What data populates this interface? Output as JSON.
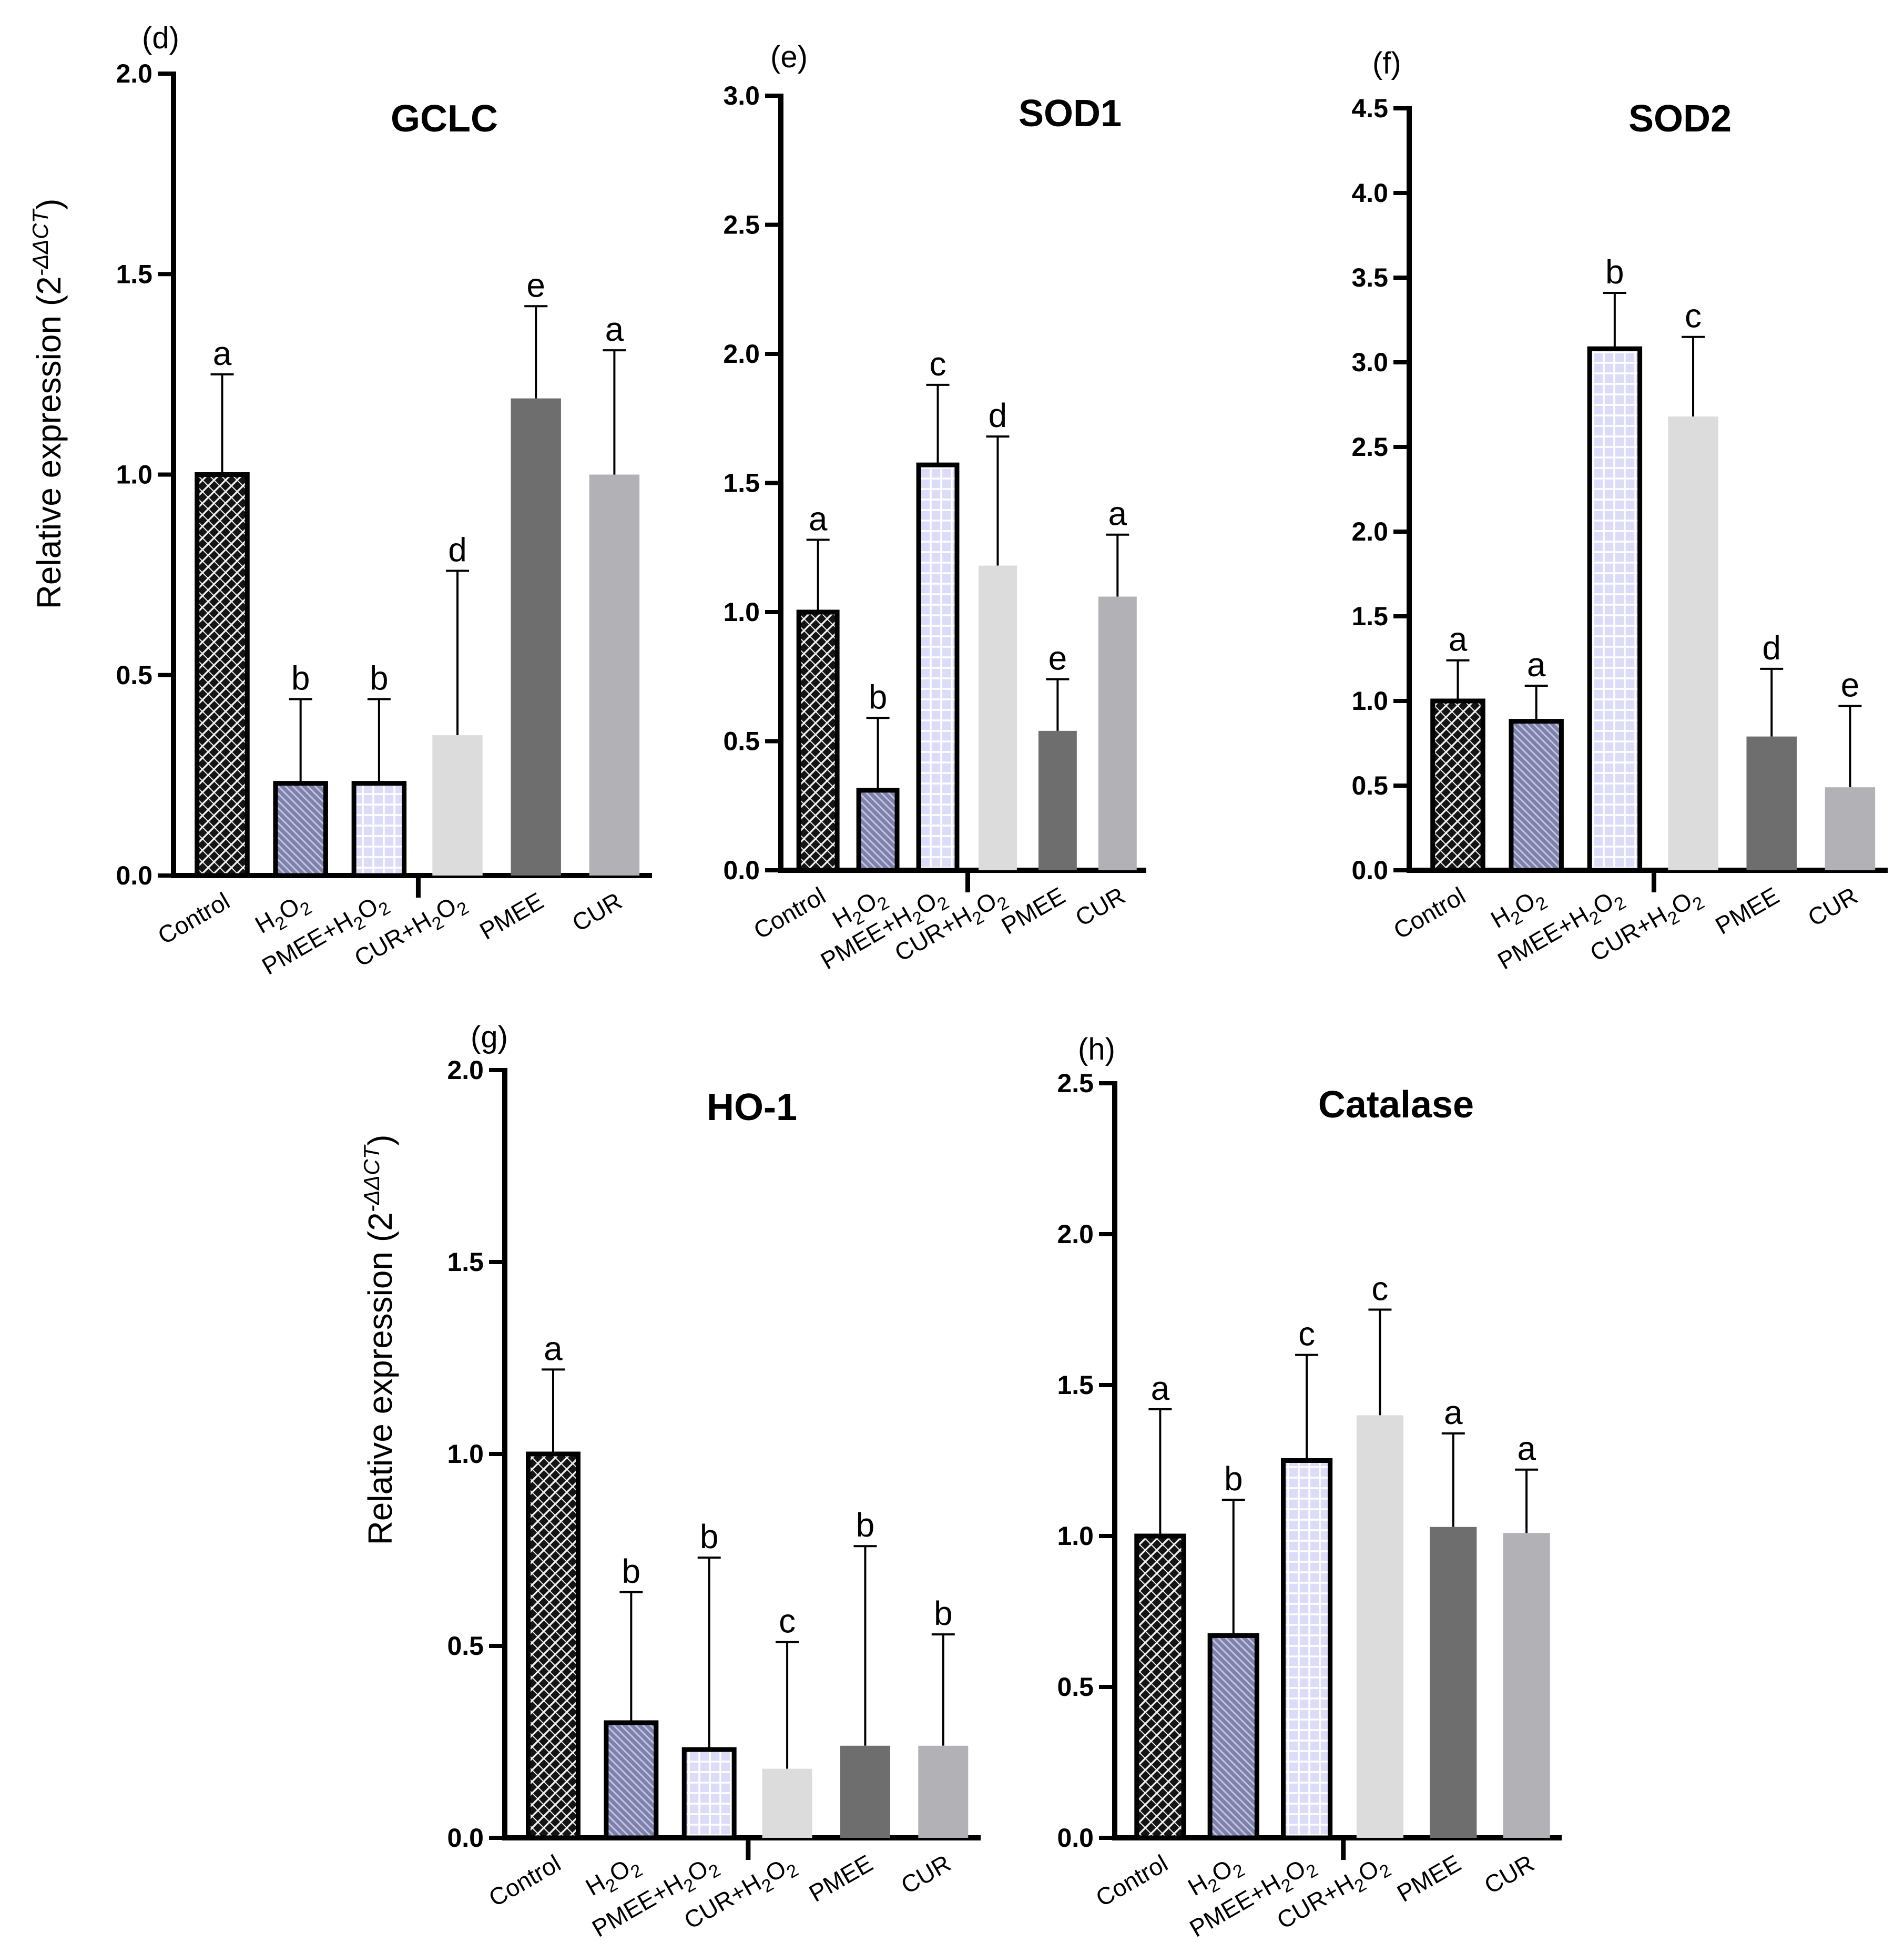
{
  "figure": {
    "y_axis_title": "Relative expression (2",
    "y_axis_title_exp": "-ΔΔCT",
    "y_axis_title_close": ")"
  },
  "groups": [
    {
      "id": "control",
      "label": "Control",
      "fill": "#1a1a1a",
      "pattern": "crosshatch-dark"
    },
    {
      "id": "h2o2",
      "label": "H2O2",
      "fill": "#8c8fb8",
      "pattern": "diagonal-blue"
    },
    {
      "id": "pmee_h2o2",
      "label": "PMEE+H2O2",
      "fill": "#e6e6fb",
      "pattern": "grid-lavender"
    },
    {
      "id": "cur_h2o2",
      "label": "CUR+H2O2",
      "fill": "#dcdcdc",
      "pattern": "solid"
    },
    {
      "id": "pmee",
      "label": "PMEE",
      "fill": "#6e6e6e",
      "pattern": "solid"
    },
    {
      "id": "cur",
      "label": "CUR",
      "fill": "#b1b1b6",
      "pattern": "solid"
    }
  ],
  "chart_data": [
    {
      "panel": "(d)",
      "type": "bar",
      "title": "GCLC",
      "ylabel": "Relative expression (2-ΔΔCT)",
      "ylim": [
        0,
        2.0
      ],
      "yticks": [
        "0.0",
        "0.5",
        "1.0",
        "1.5",
        "2.0"
      ],
      "categories": [
        "Control",
        "H2O2",
        "PMEE+H2O2",
        "CUR+H2O2",
        "PMEE",
        "CUR"
      ],
      "values": [
        1.0,
        0.23,
        0.23,
        0.35,
        1.19,
        1.0
      ],
      "errors": [
        0.25,
        0.21,
        0.21,
        0.41,
        0.23,
        0.31
      ],
      "significance": [
        "a",
        "b",
        "b",
        "d",
        "e",
        "a"
      ]
    },
    {
      "panel": "(e)",
      "type": "bar",
      "title": "SOD1",
      "ylabel": "",
      "ylim": [
        0,
        3.0
      ],
      "yticks": [
        "0.0",
        "0.5",
        "1.0",
        "1.5",
        "2.0",
        "2.5",
        "3.0"
      ],
      "categories": [
        "Control",
        "H2O2",
        "PMEE+H2O2",
        "CUR+H2O2",
        "PMEE",
        "CUR"
      ],
      "values": [
        1.0,
        0.31,
        1.57,
        1.18,
        0.54,
        1.06
      ],
      "errors": [
        0.28,
        0.28,
        0.31,
        0.5,
        0.2,
        0.24
      ],
      "significance": [
        "a",
        "b",
        "c",
        "d",
        "e",
        "a"
      ]
    },
    {
      "panel": "(f)",
      "type": "bar",
      "title": "SOD2",
      "ylabel": "",
      "ylim": [
        0,
        4.5
      ],
      "yticks": [
        "0.0",
        "0.5",
        "1.0",
        "1.5",
        "2.0",
        "2.5",
        "3.0",
        "3.5",
        "4.0",
        "4.5"
      ],
      "categories": [
        "Control",
        "H2O2",
        "PMEE+H2O2",
        "CUR+H2O2",
        "PMEE",
        "CUR"
      ],
      "values": [
        1.0,
        0.88,
        3.08,
        2.68,
        0.79,
        0.49
      ],
      "errors": [
        0.24,
        0.21,
        0.33,
        0.47,
        0.4,
        0.48
      ],
      "significance": [
        "a",
        "a",
        "b",
        "c",
        "d",
        "e"
      ]
    },
    {
      "panel": "(g)",
      "type": "bar",
      "title": "HO-1",
      "ylabel": "Relative expression (2-ΔΔCT)",
      "ylim": [
        0,
        2.0
      ],
      "yticks": [
        "0.0",
        "0.5",
        "1.0",
        "1.5",
        "2.0"
      ],
      "categories": [
        "Control",
        "H2O2",
        "PMEE+H2O2",
        "CUR+H2O2",
        "PMEE",
        "CUR"
      ],
      "values": [
        1.0,
        0.3,
        0.23,
        0.18,
        0.24,
        0.24
      ],
      "errors": [
        0.22,
        0.34,
        0.5,
        0.33,
        0.52,
        0.29
      ],
      "significance": [
        "a",
        "b",
        "b",
        "c",
        "b",
        "b"
      ]
    },
    {
      "panel": "(h)",
      "type": "bar",
      "title": "Catalase",
      "ylabel": "",
      "ylim": [
        0,
        2.5
      ],
      "yticks": [
        "0.0",
        "0.5",
        "1.0",
        "1.5",
        "2.0",
        "2.5"
      ],
      "categories": [
        "Control",
        "H2O2",
        "PMEE+H2O2",
        "CUR+H2O2",
        "PMEE",
        "CUR"
      ],
      "values": [
        1.0,
        0.67,
        1.25,
        1.4,
        1.03,
        1.01
      ],
      "errors": [
        0.42,
        0.45,
        0.35,
        0.35,
        0.31,
        0.21
      ],
      "significance": [
        "a",
        "b",
        "c",
        "c",
        "a",
        "a"
      ]
    }
  ]
}
